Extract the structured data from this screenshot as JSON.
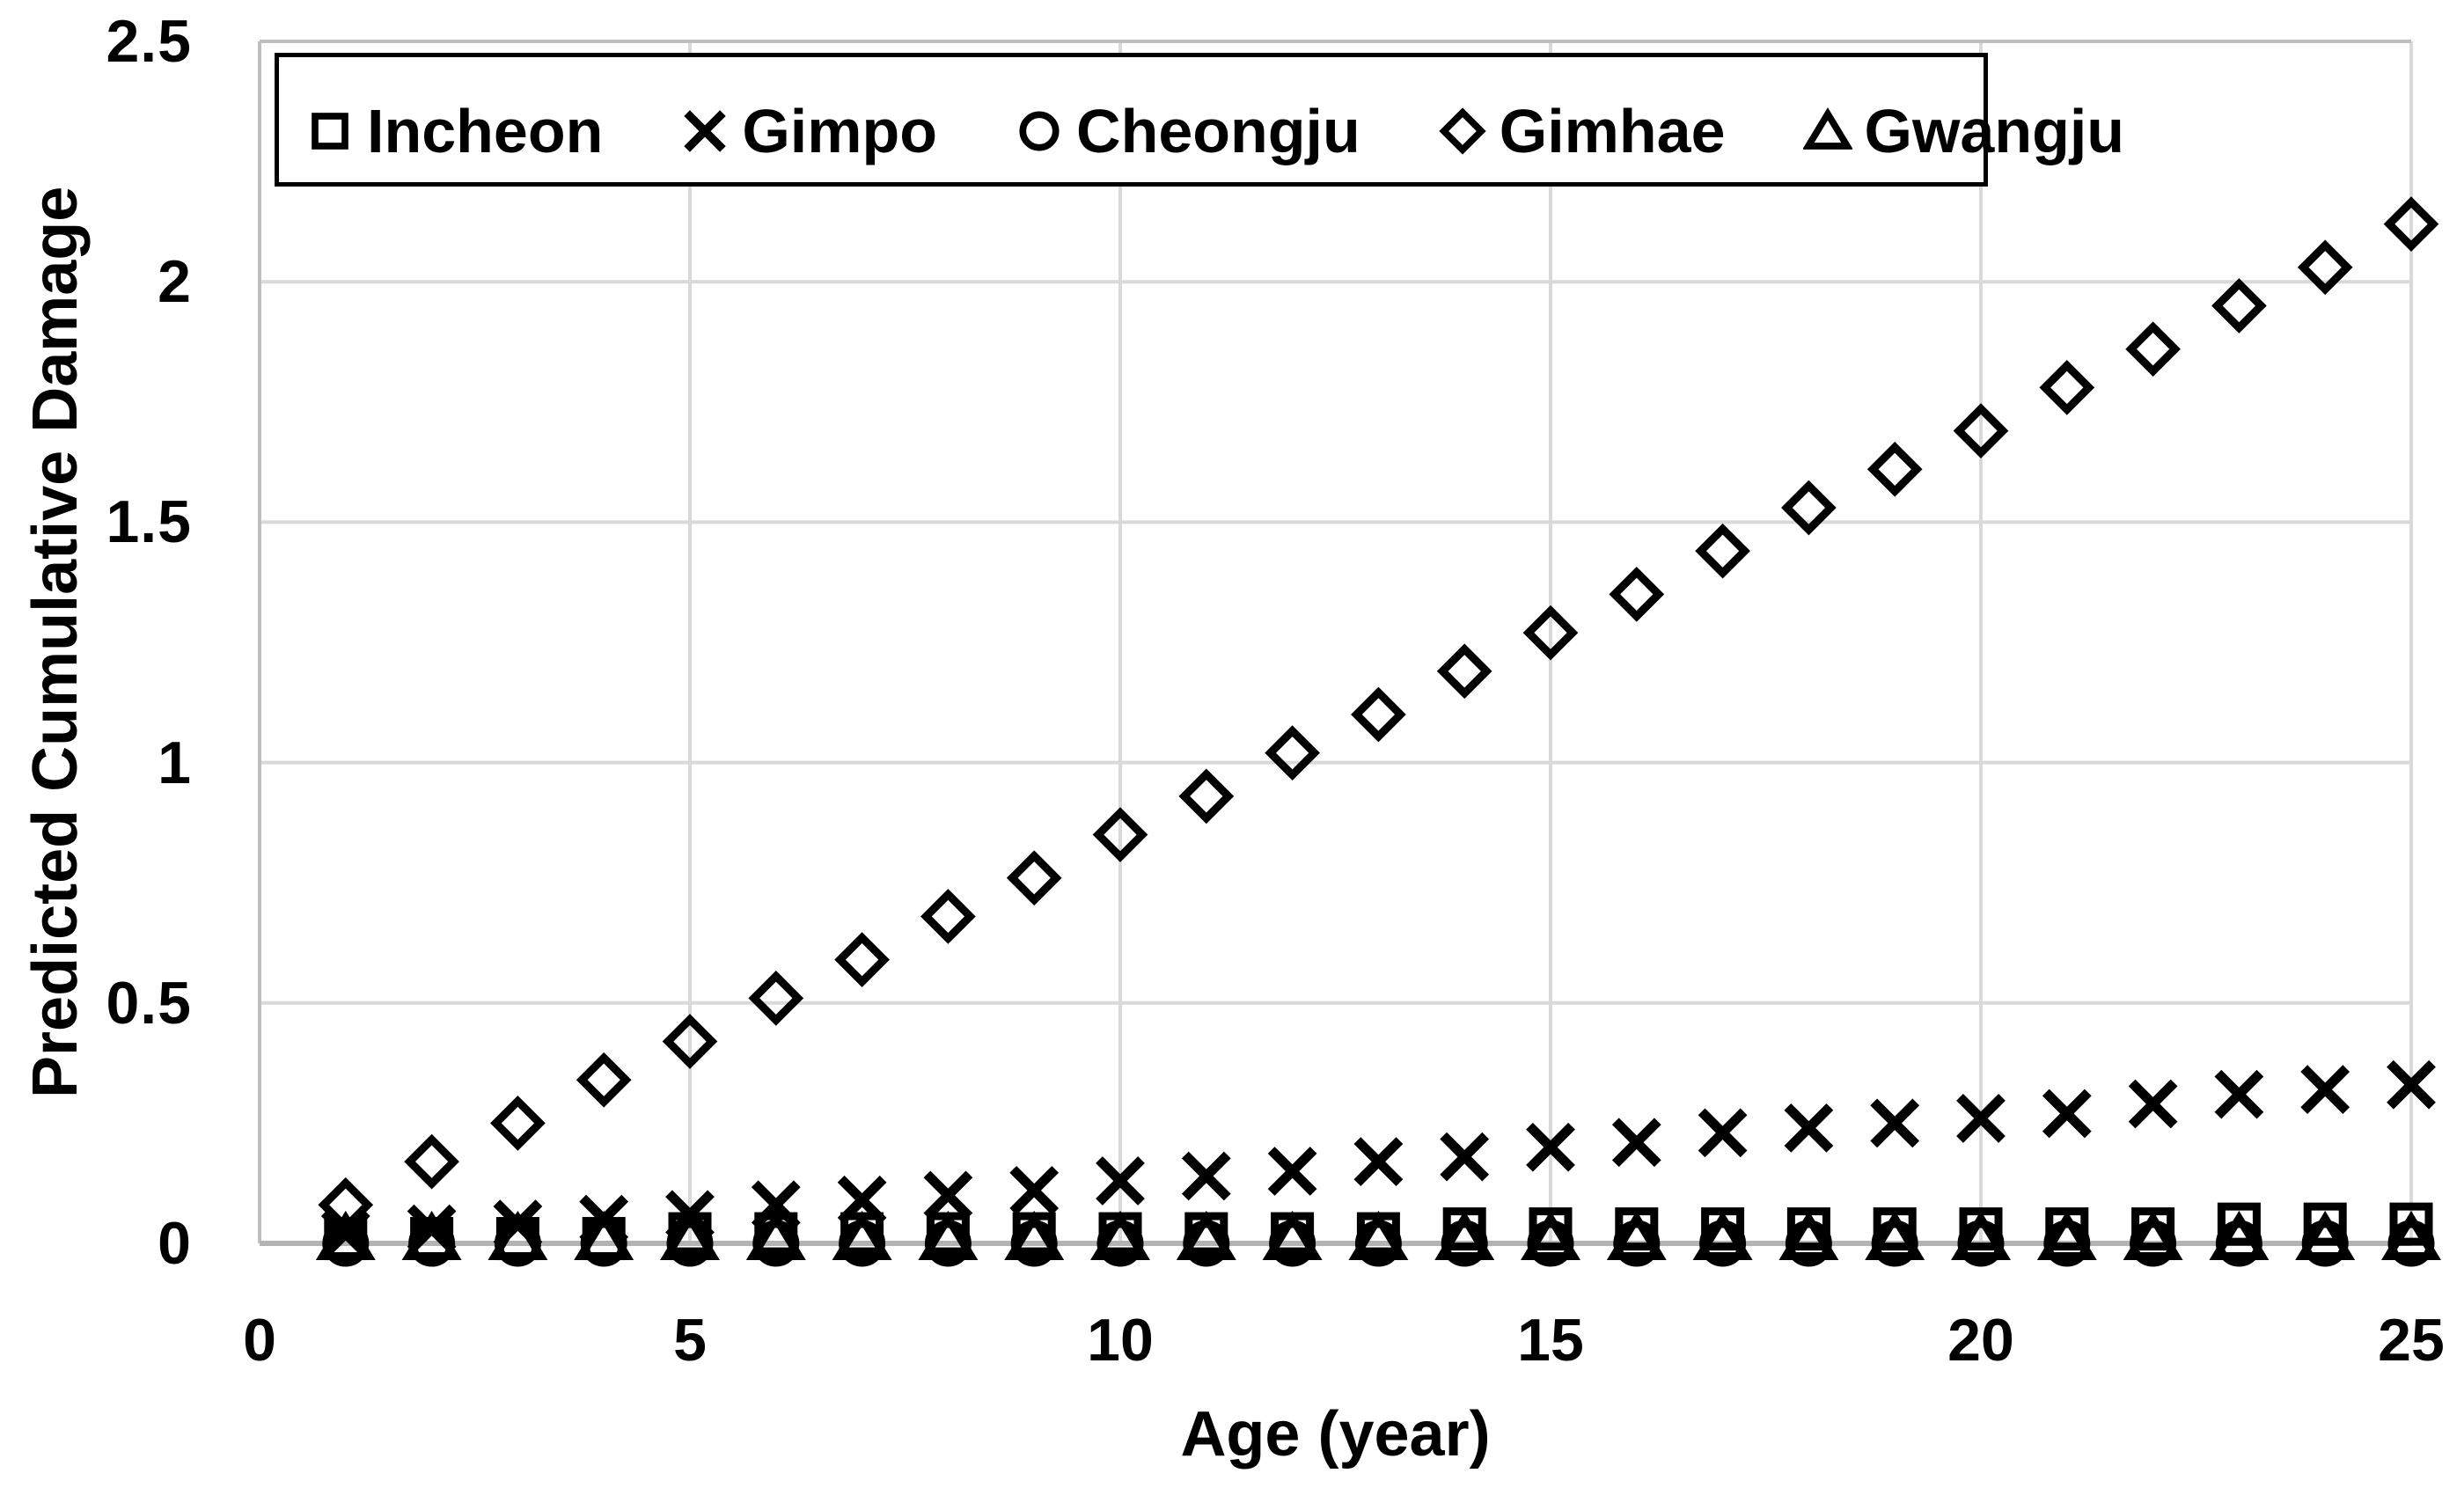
{
  "chart_data": {
    "type": "scatter",
    "xlabel": "Age (year)",
    "ylabel": "Predicted Cumulative Damage",
    "xlim": [
      0,
      25
    ],
    "ylim": [
      0,
      2.5
    ],
    "x_ticks": [
      0,
      5,
      10,
      15,
      20,
      25
    ],
    "x_tick_labels": [
      "0",
      "5",
      "10",
      "15",
      "20",
      "25"
    ],
    "y_ticks": [
      0,
      0.5,
      1,
      1.5,
      2,
      2.5
    ],
    "y_tick_labels": [
      "0",
      "0.5",
      "1",
      "1.5",
      "2",
      "2.5"
    ],
    "grid": true,
    "legend_position": "top-inside",
    "x": [
      1,
      2,
      3,
      4,
      5,
      6,
      7,
      8,
      9,
      10,
      11,
      12,
      13,
      14,
      15,
      16,
      17,
      18,
      19,
      20,
      21,
      22,
      23,
      24,
      25
    ],
    "series": [
      {
        "name": "Incheon",
        "marker": "square",
        "values": [
          0.01,
          0.01,
          0.01,
          0.01,
          0.02,
          0.02,
          0.02,
          0.02,
          0.02,
          0.02,
          0.02,
          0.02,
          0.02,
          0.03,
          0.03,
          0.03,
          0.03,
          0.03,
          0.03,
          0.03,
          0.03,
          0.03,
          0.04,
          0.04,
          0.04
        ]
      },
      {
        "name": "Gimpo",
        "marker": "x",
        "values": [
          0.02,
          0.03,
          0.04,
          0.05,
          0.06,
          0.08,
          0.09,
          0.1,
          0.11,
          0.13,
          0.14,
          0.15,
          0.17,
          0.18,
          0.2,
          0.21,
          0.23,
          0.24,
          0.25,
          0.26,
          0.27,
          0.29,
          0.31,
          0.32,
          0.33
        ]
      },
      {
        "name": "Cheongju",
        "marker": "circle",
        "values": [
          0.0,
          0.0,
          0.0,
          0.0,
          0.0,
          0.0,
          0.0,
          0.0,
          0.0,
          0.0,
          0.0,
          0.0,
          0.0,
          0.0,
          0.0,
          0.0,
          0.0,
          0.0,
          0.0,
          0.0,
          0.0,
          0.0,
          0.0,
          0.0,
          0.0
        ]
      },
      {
        "name": "Gimhae",
        "marker": "diamond",
        "values": [
          0.08,
          0.17,
          0.25,
          0.34,
          0.42,
          0.51,
          0.59,
          0.68,
          0.76,
          0.85,
          0.93,
          1.02,
          1.1,
          1.19,
          1.27,
          1.35,
          1.44,
          1.53,
          1.61,
          1.69,
          1.78,
          1.86,
          1.95,
          2.03,
          2.12
        ]
      },
      {
        "name": "Gwangju",
        "marker": "triangle",
        "values": [
          0.01,
          0.01,
          0.01,
          0.01,
          0.01,
          0.01,
          0.01,
          0.01,
          0.01,
          0.01,
          0.01,
          0.01,
          0.01,
          0.01,
          0.01,
          0.01,
          0.01,
          0.01,
          0.01,
          0.01,
          0.01,
          0.01,
          0.01,
          0.01,
          0.01
        ]
      }
    ],
    "colors": {
      "marker": "#000000",
      "grid": "#d9d9d9",
      "frame": "#bfbfbf",
      "axis": "#b3b3b3",
      "text": "#000000",
      "legend_border": "#000000",
      "background": "#ffffff"
    }
  }
}
